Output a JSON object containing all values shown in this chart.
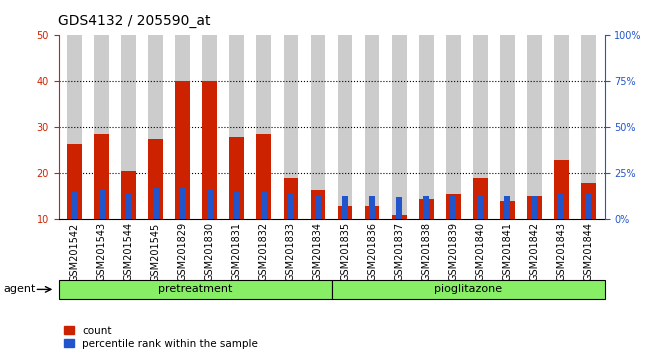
{
  "title": "GDS4132 / 205590_at",
  "categories": [
    "GSM201542",
    "GSM201543",
    "GSM201544",
    "GSM201545",
    "GSM201829",
    "GSM201830",
    "GSM201831",
    "GSM201832",
    "GSM201833",
    "GSM201834",
    "GSM201835",
    "GSM201836",
    "GSM201837",
    "GSM201838",
    "GSM201839",
    "GSM201840",
    "GSM201841",
    "GSM201842",
    "GSM201843",
    "GSM201844"
  ],
  "count_values": [
    26.5,
    28.5,
    20.5,
    27.5,
    40.0,
    40.0,
    28.0,
    28.5,
    19.0,
    16.5,
    13.0,
    13.0,
    11.0,
    14.5,
    15.5,
    19.0,
    14.0,
    15.0,
    23.0,
    18.0
  ],
  "percentile_values": [
    15,
    16,
    14,
    17,
    17,
    16,
    15,
    15,
    14,
    13,
    13,
    13,
    12,
    13,
    13,
    13,
    13,
    13,
    14,
    14
  ],
  "bar_width": 0.55,
  "count_color": "#cc2200",
  "percentile_color": "#2255cc",
  "ylim_left": [
    10,
    50
  ],
  "ylim_right": [
    0,
    100
  ],
  "yticks_left": [
    10,
    20,
    30,
    40,
    50
  ],
  "yticks_right": [
    0,
    25,
    50,
    75,
    100
  ],
  "ytick_labels_right": [
    "0%",
    "25%",
    "50%",
    "75%",
    "100%"
  ],
  "ylabel_left_color": "#cc2200",
  "ylabel_right_color": "#2255cc",
  "grid_lines": [
    20,
    30,
    40
  ],
  "n_pretreatment": 10,
  "n_pioglitazone": 10,
  "pretreatment_label": "pretreatment",
  "pioglitazone_label": "pioglitazone",
  "agent_label": "agent",
  "group_bar_color": "#88ee66",
  "legend_count_label": "count",
  "legend_percentile_label": "percentile rank within the sample",
  "tick_bar_color": "#cccccc",
  "title_fontsize": 10,
  "tick_fontsize": 7,
  "label_fontsize": 8
}
